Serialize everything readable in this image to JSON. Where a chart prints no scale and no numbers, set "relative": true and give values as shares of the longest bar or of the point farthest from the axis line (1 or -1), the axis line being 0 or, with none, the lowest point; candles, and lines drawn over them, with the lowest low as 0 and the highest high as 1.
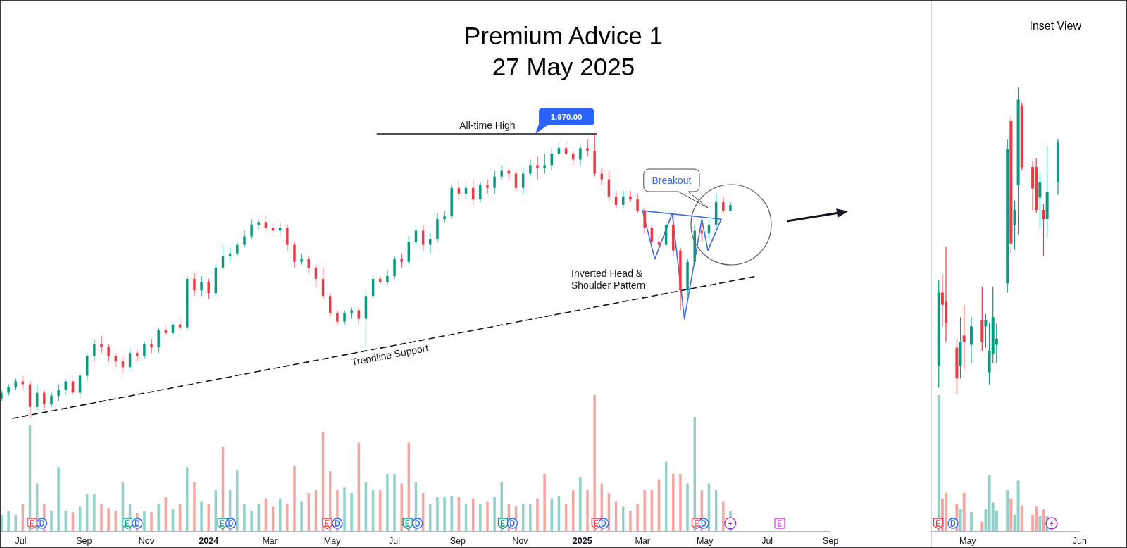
{
  "chart_data": [
    {
      "type": "candlestick",
      "title": "Premium Advice 1",
      "subtitle": "27 May 2025",
      "relative": true,
      "xlim": [
        "2023-06-11",
        "2025-09-01"
      ],
      "tick_labels": false,
      "series": [
        {
          "type": "candlestick",
          "x": [
            "2023-06-12",
            "2023-06-19",
            "2023-06-26",
            "2023-07-03",
            "2023-07-10",
            "2023-07-17",
            "2023-07-24",
            "2023-07-31",
            "2023-08-07",
            "2023-08-14",
            "2023-08-21",
            "2023-08-28",
            "2023-09-04",
            "2023-09-11",
            "2023-09-18",
            "2023-09-25",
            "2023-10-02",
            "2023-10-09",
            "2023-10-16",
            "2023-10-23",
            "2023-10-30",
            "2023-11-06",
            "2023-11-13",
            "2023-11-20",
            "2023-11-27",
            "2023-12-04",
            "2023-12-11",
            "2023-12-18",
            "2023-12-25",
            "2024-01-01",
            "2024-01-08",
            "2024-01-15",
            "2024-01-22",
            "2024-01-29",
            "2024-02-05",
            "2024-02-12",
            "2024-02-19",
            "2024-02-26",
            "2024-03-04",
            "2024-03-11",
            "2024-03-18",
            "2024-03-25",
            "2024-04-01",
            "2024-04-08",
            "2024-04-15",
            "2024-04-22",
            "2024-04-29",
            "2024-05-06",
            "2024-05-13",
            "2024-05-20",
            "2024-05-27",
            "2024-06-03",
            "2024-06-10",
            "2024-06-17",
            "2024-06-24",
            "2024-07-01",
            "2024-07-08",
            "2024-07-15",
            "2024-07-22",
            "2024-07-29",
            "2024-08-05",
            "2024-08-12",
            "2024-08-19",
            "2024-08-26",
            "2024-09-02",
            "2024-09-09",
            "2024-09-16",
            "2024-09-23",
            "2024-09-30",
            "2024-10-07",
            "2024-10-14",
            "2024-10-21",
            "2024-10-28",
            "2024-11-04",
            "2024-11-11",
            "2024-11-18",
            "2024-11-25",
            "2024-12-02",
            "2024-12-09",
            "2024-12-16",
            "2024-12-23",
            "2024-12-30",
            "2025-01-06",
            "2025-01-13",
            "2025-01-20",
            "2025-01-27",
            "2025-02-03",
            "2025-02-10",
            "2025-02-17",
            "2025-02-24",
            "2025-03-03",
            "2025-03-10",
            "2025-03-17",
            "2025-03-24",
            "2025-03-31",
            "2025-04-07",
            "2025-04-14",
            "2025-04-21",
            "2025-04-28",
            "2025-05-05",
            "2025-05-12",
            "2025-05-19",
            "2025-05-26"
          ],
          "ohlc": [
            [
              0.07,
              0.1,
              0.06,
              0.09
            ],
            [
              0.09,
              0.12,
              0.08,
              0.11
            ],
            [
              0.11,
              0.14,
              0.1,
              0.13
            ],
            [
              0.13,
              0.15,
              0.1,
              0.12
            ],
            [
              0.12,
              0.13,
              0,
              0.04
            ],
            [
              0.04,
              0.12,
              0.03,
              0.09
            ],
            [
              0.09,
              0.1,
              0.03,
              0.05
            ],
            [
              0.05,
              0.09,
              0.04,
              0.08
            ],
            [
              0.08,
              0.12,
              0.06,
              0.1
            ],
            [
              0.1,
              0.14,
              0.08,
              0.13
            ],
            [
              0.13,
              0.15,
              0.08,
              0.09
            ],
            [
              0.09,
              0.16,
              0.07,
              0.15
            ],
            [
              0.15,
              0.23,
              0.13,
              0.22
            ],
            [
              0.22,
              0.28,
              0.2,
              0.26
            ],
            [
              0.26,
              0.29,
              0.23,
              0.25
            ],
            [
              0.25,
              0.26,
              0.2,
              0.22
            ],
            [
              0.22,
              0.23,
              0.18,
              0.2
            ],
            [
              0.2,
              0.22,
              0.16,
              0.18
            ],
            [
              0.18,
              0.25,
              0.17,
              0.23
            ],
            [
              0.23,
              0.24,
              0.2,
              0.22
            ],
            [
              0.22,
              0.27,
              0.21,
              0.26
            ],
            [
              0.26,
              0.28,
              0.23,
              0.25
            ],
            [
              0.25,
              0.32,
              0.23,
              0.31
            ],
            [
              0.31,
              0.33,
              0.29,
              0.3
            ],
            [
              0.3,
              0.34,
              0.29,
              0.33
            ],
            [
              0.33,
              0.35,
              0.31,
              0.32
            ],
            [
              0.32,
              0.5,
              0.31,
              0.49
            ],
            [
              0.49,
              0.51,
              0.43,
              0.45
            ],
            [
              0.45,
              0.5,
              0.43,
              0.48
            ],
            [
              0.48,
              0.49,
              0.42,
              0.44
            ],
            [
              0.44,
              0.54,
              0.43,
              0.53
            ],
            [
              0.53,
              0.61,
              0.52,
              0.57
            ],
            [
              0.57,
              0.6,
              0.55,
              0.58
            ],
            [
              0.58,
              0.62,
              0.57,
              0.61
            ],
            [
              0.61,
              0.66,
              0.6,
              0.64
            ],
            [
              0.64,
              0.7,
              0.63,
              0.68
            ],
            [
              0.68,
              0.7,
              0.66,
              0.69
            ],
            [
              0.69,
              0.71,
              0.65,
              0.67
            ],
            [
              0.67,
              0.69,
              0.64,
              0.66
            ],
            [
              0.66,
              0.69,
              0.65,
              0.67
            ],
            [
              0.67,
              0.68,
              0.59,
              0.61
            ],
            [
              0.61,
              0.62,
              0.53,
              0.55
            ],
            [
              0.55,
              0.58,
              0.54,
              0.56
            ],
            [
              0.56,
              0.57,
              0.51,
              0.53
            ],
            [
              0.53,
              0.54,
              0.46,
              0.49
            ],
            [
              0.49,
              0.53,
              0.42,
              0.43
            ],
            [
              0.43,
              0.44,
              0.36,
              0.37
            ],
            [
              0.37,
              0.38,
              0.33,
              0.34
            ],
            [
              0.34,
              0.38,
              0.33,
              0.37
            ],
            [
              0.37,
              0.39,
              0.35,
              0.38
            ],
            [
              0.38,
              0.39,
              0.33,
              0.35
            ],
            [
              0.35,
              0.45,
              0.25,
              0.43
            ],
            [
              0.43,
              0.5,
              0.42,
              0.49
            ],
            [
              0.49,
              0.5,
              0.47,
              0.48
            ],
            [
              0.48,
              0.52,
              0.47,
              0.5
            ],
            [
              0.5,
              0.57,
              0.49,
              0.56
            ],
            [
              0.56,
              0.58,
              0.53,
              0.55
            ],
            [
              0.55,
              0.64,
              0.54,
              0.62
            ],
            [
              0.62,
              0.67,
              0.61,
              0.66
            ],
            [
              0.66,
              0.68,
              0.59,
              0.61
            ],
            [
              0.61,
              0.65,
              0.58,
              0.63
            ],
            [
              0.63,
              0.72,
              0.62,
              0.7
            ],
            [
              0.7,
              0.73,
              0.69,
              0.71
            ],
            [
              0.71,
              0.82,
              0.7,
              0.81
            ],
            [
              0.81,
              0.84,
              0.77,
              0.79
            ],
            [
              0.79,
              0.83,
              0.77,
              0.81
            ],
            [
              0.81,
              0.84,
              0.75,
              0.77
            ],
            [
              0.77,
              0.83,
              0.76,
              0.82
            ],
            [
              0.82,
              0.84,
              0.79,
              0.81
            ],
            [
              0.81,
              0.87,
              0.79,
              0.85
            ],
            [
              0.85,
              0.89,
              0.84,
              0.87
            ],
            [
              0.87,
              0.88,
              0.84,
              0.86
            ],
            [
              0.86,
              0.87,
              0.8,
              0.81
            ],
            [
              0.81,
              0.88,
              0.79,
              0.86
            ],
            [
              0.86,
              0.91,
              0.85,
              0.89
            ],
            [
              0.89,
              0.92,
              0.84,
              0.88
            ],
            [
              0.88,
              0.93,
              0.86,
              0.89
            ],
            [
              0.89,
              0.95,
              0.87,
              0.93
            ],
            [
              0.93,
              0.97,
              0.92,
              0.95
            ],
            [
              0.95,
              0.97,
              0.92,
              0.93
            ],
            [
              0.93,
              0.94,
              0.89,
              0.91
            ],
            [
              0.91,
              0.96,
              0.89,
              0.95
            ],
            [
              0.95,
              0.98,
              0.92,
              0.94
            ],
            [
              0.94,
              1,
              0.85,
              0.86
            ],
            [
              0.86,
              0.88,
              0.82,
              0.84
            ],
            [
              0.84,
              0.87,
              0.77,
              0.78
            ],
            [
              0.78,
              0.8,
              0.74,
              0.75
            ],
            [
              0.75,
              0.8,
              0.74,
              0.78
            ],
            [
              0.78,
              0.8,
              0.76,
              0.77
            ],
            [
              0.77,
              0.79,
              0.72,
              0.73
            ],
            [
              0.73,
              0.74,
              0.65,
              0.67
            ],
            [
              0.67,
              0.68,
              0.6,
              0.62
            ],
            [
              0.62,
              0.64,
              0.59,
              0.61
            ],
            [
              0.61,
              0.69,
              0.6,
              0.68
            ],
            [
              0.68,
              0.72,
              0.57,
              0.59
            ],
            [
              0.59,
              0.6,
              0.38,
              0.45
            ],
            [
              0.45,
              0.56,
              0.43,
              0.55
            ],
            [
              0.55,
              0.68,
              0.54,
              0.66
            ],
            [
              0.66,
              0.68,
              0.62,
              0.65
            ],
            [
              0.65,
              0.7,
              0.63,
              0.68
            ],
            [
              0.68,
              0.79,
              0.67,
              0.76
            ],
            [
              0.76,
              0.78,
              0.72,
              0.73
            ],
            [
              0.73,
              0.76,
              0.73,
              0.75
            ]
          ],
          "colors": [
            "#089981",
            "#089981",
            "#089981",
            "#f23645",
            "#f23645",
            "#089981",
            "#f23645",
            "#089981",
            "#089981",
            "#089981",
            "#f23645",
            "#089981",
            "#089981",
            "#089981",
            "#f23645",
            "#f23645",
            "#f23645",
            "#f23645",
            "#089981",
            "#f23645",
            "#089981",
            "#f23645",
            "#089981",
            "#f23645",
            "#089981",
            "#f23645",
            "#089981",
            "#f23645",
            "#089981",
            "#f23645",
            "#089981",
            "#089981",
            "#089981",
            "#089981",
            "#089981",
            "#089981",
            "#089981",
            "#f23645",
            "#f23645",
            "#089981",
            "#f23645",
            "#f23645",
            "#089981",
            "#f23645",
            "#f23645",
            "#f23645",
            "#f23645",
            "#f23645",
            "#089981",
            "#089981",
            "#f23645",
            "#089981",
            "#089981",
            "#f23645",
            "#089981",
            "#089981",
            "#f23645",
            "#089981",
            "#089981",
            "#f23645",
            "#089981",
            "#089981",
            "#089981",
            "#089981",
            "#f23645",
            "#089981",
            "#f23645",
            "#089981",
            "#f23645",
            "#089981",
            "#089981",
            "#f23645",
            "#f23645",
            "#089981",
            "#089981",
            "#f23645",
            "#089981",
            "#089981",
            "#089981",
            "#f23645",
            "#f23645",
            "#089981",
            "#f23645",
            "#f23645",
            "#f23645",
            "#f23645",
            "#f23645",
            "#089981",
            "#f23645",
            "#f23645",
            "#f23645",
            "#f23645",
            "#f23645",
            "#089981",
            "#f23645",
            "#f23645",
            "#089981",
            "#089981",
            "#f23645",
            "#089981",
            "#089981",
            "#f23645",
            "#089981"
          ]
        },
        {
          "type": "line",
          "x": [
            "2024-06-14",
            "2025-01-15"
          ],
          "values": [
            1,
            1
          ],
          "color": "#131722"
        },
        {
          "type": "line",
          "x": [
            "2023-06-23",
            "2025-06-21"
          ],
          "values": [
            0,
            0.5
          ],
          "color": "#131722",
          "line_style": "dashed"
        },
        {
          "type": "line",
          "x": [
            "2025-03-01",
            "2025-03-13",
            "2025-03-30",
            "2025-04-11",
            "2025-04-28",
            "2025-05-04",
            "2025-05-17"
          ],
          "values": [
            0.73,
            0.56,
            0.72,
            0.35,
            0.7,
            0.59,
            0.7
          ],
          "color": "#3b6fe3"
        },
        {
          "type": "line",
          "x": [
            "2025-03-01",
            "2025-05-17"
          ],
          "values": [
            0.73,
            0.7
          ],
          "color": "#3b6fe3"
        }
      ],
      "annotations": [
        {
          "text": "All-time High",
          "x": "2024-09-30",
          "y": 1
        },
        {
          "text": "1,970.00",
          "x": "2024-11-16",
          "y": 1
        },
        "Breakout",
        "Inverted Head &\nShoulder Pattern",
        {
          "text": "Trendline Support",
          "x": "2024-06-25",
          "y": 0.25
        }
      ]
    },
    {
      "type": "bar",
      "relative": true,
      "x": [
        "2023-06-12",
        "2023-06-19",
        "2023-06-26",
        "2023-07-03",
        "2023-07-10",
        "2023-07-17",
        "2023-07-24",
        "2023-07-31",
        "2023-08-07",
        "2023-08-14",
        "2023-08-21",
        "2023-08-28",
        "2023-09-04",
        "2023-09-11",
        "2023-09-18",
        "2023-09-25",
        "2023-10-02",
        "2023-10-09",
        "2023-10-16",
        "2023-10-23",
        "2023-10-30",
        "2023-11-06",
        "2023-11-13",
        "2023-11-20",
        "2023-11-27",
        "2023-12-04",
        "2023-12-11",
        "2023-12-18",
        "2023-12-25",
        "2024-01-01",
        "2024-01-08",
        "2024-01-15",
        "2024-01-22",
        "2024-01-29",
        "2024-02-05",
        "2024-02-12",
        "2024-02-19",
        "2024-02-26",
        "2024-03-04",
        "2024-03-11",
        "2024-03-18",
        "2024-03-25",
        "2024-04-01",
        "2024-04-08",
        "2024-04-15",
        "2024-04-22",
        "2024-04-29",
        "2024-05-06",
        "2024-05-13",
        "2024-05-20",
        "2024-05-27",
        "2024-06-03",
        "2024-06-10",
        "2024-06-17",
        "2024-06-24",
        "2024-07-01",
        "2024-07-08",
        "2024-07-15",
        "2024-07-22",
        "2024-07-29",
        "2024-08-05",
        "2024-08-12",
        "2024-08-19",
        "2024-08-26",
        "2024-09-02",
        "2024-09-09",
        "2024-09-16",
        "2024-09-23",
        "2024-09-30",
        "2024-10-07",
        "2024-10-14",
        "2024-10-21",
        "2024-10-28",
        "2024-11-04",
        "2024-11-11",
        "2024-11-18",
        "2024-11-25",
        "2024-12-02",
        "2024-12-09",
        "2024-12-16",
        "2024-12-23",
        "2024-12-30",
        "2025-01-06",
        "2025-01-13",
        "2025-01-20",
        "2025-01-27",
        "2025-02-03",
        "2025-02-10",
        "2025-02-17",
        "2025-02-24",
        "2025-03-03",
        "2025-03-10",
        "2025-03-17",
        "2025-03-24",
        "2025-03-31",
        "2025-04-07",
        "2025-04-14",
        "2025-04-21",
        "2025-04-28",
        "2025-05-05",
        "2025-05-12",
        "2025-05-19",
        "2025-05-26"
      ],
      "values": [
        0.12,
        0.15,
        0.12,
        0.2,
        0.78,
        0.35,
        0.2,
        0.15,
        0.47,
        0.15,
        0.14,
        0.18,
        0.27,
        0.27,
        0.2,
        0.17,
        0.15,
        0.36,
        0.2,
        0.13,
        0.15,
        0.14,
        0.2,
        0.25,
        0.16,
        0.2,
        0.47,
        0.36,
        0.22,
        0.2,
        0.3,
        0.62,
        0.3,
        0.45,
        0.2,
        0.15,
        0.2,
        0.24,
        0.18,
        0.24,
        0.2,
        0.48,
        0.22,
        0.28,
        0.3,
        0.73,
        0.44,
        0.3,
        0.32,
        0.28,
        0.65,
        0.36,
        0.3,
        0.3,
        0.42,
        0.42,
        0.35,
        0.65,
        0.36,
        0.28,
        0.2,
        0.25,
        0.25,
        0.26,
        0.25,
        0.2,
        0.24,
        0.2,
        0.22,
        0.25,
        0.36,
        0.2,
        0.18,
        0.2,
        0.2,
        0.24,
        0.42,
        0.24,
        0.26,
        0.2,
        0.3,
        0.4,
        0.3,
        1,
        0.35,
        0.28,
        0.22,
        0.18,
        0.15,
        0.2,
        0.3,
        0.3,
        0.38,
        0.51,
        0.42,
        0.42,
        0.35,
        0.84,
        0.3,
        0.35,
        0.3,
        0.22,
        0.15
      ],
      "colors": [
        "#8fd1c8",
        "#8fd1c8",
        "#8fd1c8",
        "#f5a5a2",
        "#8fd1c8",
        "#8fd1c8",
        "#f5a5a2",
        "#8fd1c8",
        "#8fd1c8",
        "#8fd1c8",
        "#f5a5a2",
        "#8fd1c8",
        "#8fd1c8",
        "#8fd1c8",
        "#f5a5a2",
        "#f5a5a2",
        "#f5a5a2",
        "#8fd1c8",
        "#8fd1c8",
        "#f5a5a2",
        "#8fd1c8",
        "#f5a5a2",
        "#8fd1c8",
        "#f5a5a2",
        "#8fd1c8",
        "#f5a5a2",
        "#8fd1c8",
        "#f5a5a2",
        "#8fd1c8",
        "#f5a5a2",
        "#8fd1c8",
        "#f5a5a2",
        "#8fd1c8",
        "#8fd1c8",
        "#8fd1c8",
        "#8fd1c8",
        "#8fd1c8",
        "#f5a5a2",
        "#f5a5a2",
        "#8fd1c8",
        "#f5a5a2",
        "#f5a5a2",
        "#8fd1c8",
        "#f5a5a2",
        "#f5a5a2",
        "#f5a5a2",
        "#f5a5a2",
        "#f5a5a2",
        "#8fd1c8",
        "#8fd1c8",
        "#f5a5a2",
        "#8fd1c8",
        "#8fd1c8",
        "#f5a5a2",
        "#8fd1c8",
        "#8fd1c8",
        "#f5a5a2",
        "#f5a5a2",
        "#8fd1c8",
        "#f5a5a2",
        "#8fd1c8",
        "#8fd1c8",
        "#8fd1c8",
        "#8fd1c8",
        "#f5a5a2",
        "#8fd1c8",
        "#f5a5a2",
        "#8fd1c8",
        "#f5a5a2",
        "#8fd1c8",
        "#8fd1c8",
        "#f5a5a2",
        "#f5a5a2",
        "#8fd1c8",
        "#8fd1c8",
        "#f5a5a2",
        "#f5a5a2",
        "#8fd1c8",
        "#8fd1c8",
        "#f5a5a2",
        "#f5a5a2",
        "#8fd1c8",
        "#f5a5a2",
        "#f5a5a2",
        "#f5a5a2",
        "#f5a5a2",
        "#f5a5a2",
        "#8fd1c8",
        "#f5a5a2",
        "#f5a5a2",
        "#f5a5a2",
        "#f5a5a2",
        "#f5a5a2",
        "#8fd1c8",
        "#f5a5a2",
        "#f5a5a2",
        "#8fd1c8",
        "#8fd1c8",
        "#f5a5a2",
        "#8fd1c8",
        "#8fd1c8",
        "#f5a5a2",
        "#8fd1c8"
      ],
      "xlim": [
        "2023-06-11",
        "2025-09-01"
      ],
      "xticks": [
        {
          "value": "2023-07-01",
          "label": "Jul"
        },
        {
          "value": "2023-09-01",
          "label": "Sep"
        },
        {
          "value": "2023-11-01",
          "label": "Nov"
        },
        {
          "value": "2024-01-01",
          "label": "2024"
        },
        {
          "value": "2024-03-01",
          "label": "Mar"
        },
        {
          "value": "2024-05-01",
          "label": "May"
        },
        {
          "value": "2024-07-01",
          "label": "Jul"
        },
        {
          "value": "2024-09-01",
          "label": "Sep"
        },
        {
          "value": "2024-11-01",
          "label": "Nov"
        },
        {
          "value": "2025-01-01",
          "label": "2025"
        },
        {
          "value": "2025-03-01",
          "label": "Mar"
        },
        {
          "value": "2025-05-01",
          "label": "May"
        },
        {
          "value": "2025-07-01",
          "label": "Jul"
        },
        {
          "value": "2025-09-01",
          "label": "Sep"
        }
      ]
    },
    {
      "type": "candlestick",
      "title": "Inset View",
      "relative": true,
      "x": [
        "2025-04-23",
        "2025-04-24",
        "2025-04-25",
        "2025-04-28",
        "2025-04-29",
        "2025-04-30",
        "2025-05-02",
        "2025-05-05",
        "2025-05-06",
        "2025-05-07",
        "2025-05-08",
        "2025-05-09",
        "2025-05-12",
        "2025-05-13",
        "2025-05-14",
        "2025-05-15",
        "2025-05-16",
        "2025-05-19",
        "2025-05-20",
        "2025-05-21",
        "2025-05-22",
        "2025-05-23",
        "2025-05-26"
      ],
      "ohlc": [
        [
          0.09,
          0.37,
          0.02,
          0.33
        ],
        [
          0.33,
          0.39,
          0.22,
          0.29
        ],
        [
          0.3,
          0.48,
          0.17,
          0.23
        ],
        [
          0.15,
          0.18,
          0,
          0.05
        ],
        [
          0.09,
          0.25,
          0.05,
          0.17
        ],
        [
          0.19,
          0.29,
          0.08,
          0.17
        ],
        [
          0.16,
          0.25,
          0.1,
          0.22
        ],
        [
          0.24,
          0.35,
          0.14,
          0.17
        ],
        [
          0.22,
          0.26,
          0.15,
          0.24
        ],
        [
          0.07,
          0.23,
          0.03,
          0.14
        ],
        [
          0.13,
          0.35,
          0.1,
          0.25
        ],
        [
          0.16,
          0.23,
          0.1,
          0.18
        ],
        [
          0.36,
          0.83,
          0.33,
          0.8
        ],
        [
          0.89,
          0.91,
          0.46,
          0.49
        ],
        [
          0.55,
          0.63,
          0.47,
          0.6
        ],
        [
          0.68,
          1,
          0.52,
          0.96
        ],
        [
          0.94,
          0.95,
          0.73,
          0.74
        ],
        [
          0.74,
          0.76,
          0.6,
          0.67
        ],
        [
          0.74,
          0.77,
          0.59,
          0.6
        ],
        [
          0.64,
          0.72,
          0.54,
          0.69
        ],
        [
          0.6,
          0.62,
          0.45,
          0.57
        ],
        [
          0.57,
          0.81,
          0.51,
          0.66
        ],
        [
          0.69,
          0.83,
          0.65,
          0.82
        ]
      ],
      "colors": [
        "#089981",
        "#f23645",
        "#f23645",
        "#f23645",
        "#089981",
        "#f23645",
        "#089981",
        "#f23645",
        "#089981",
        "#089981",
        "#089981",
        "#089981",
        "#089981",
        "#f23645",
        "#089981",
        "#089981",
        "#f23645",
        "#f23645",
        "#f23645",
        "#089981",
        "#f23645",
        "#089981",
        "#089981"
      ],
      "xlim": [
        "2025-04-21",
        "2025-06-01"
      ],
      "tick_labels": false
    },
    {
      "type": "bar",
      "relative": true,
      "x": [
        "2025-04-23",
        "2025-04-24",
        "2025-04-25",
        "2025-04-28",
        "2025-04-29",
        "2025-04-30",
        "2025-05-02",
        "2025-05-05",
        "2025-05-06",
        "2025-05-07",
        "2025-05-08",
        "2025-05-09",
        "2025-05-12",
        "2025-05-13",
        "2025-05-14",
        "2025-05-15",
        "2025-05-16",
        "2025-05-19",
        "2025-05-20",
        "2025-05-21",
        "2025-05-22",
        "2025-05-23"
      ],
      "values": [
        1,
        0.24,
        0.28,
        0.2,
        0.16,
        0.28,
        0.14,
        0.07,
        0.16,
        0.41,
        0.21,
        0.15,
        0.3,
        0.24,
        0.12,
        0.37,
        0.19,
        0.12,
        0.18,
        0.11,
        0.16,
        0.11
      ],
      "colors": [
        "#8fd1c8",
        "#f5a5a2",
        "#f5a5a2",
        "#f5a5a2",
        "#8fd1c8",
        "#f5a5a2",
        "#8fd1c8",
        "#f5a5a2",
        "#8fd1c8",
        "#8fd1c8",
        "#8fd1c8",
        "#8fd1c8",
        "#8fd1c8",
        "#f5a5a2",
        "#8fd1c8",
        "#8fd1c8",
        "#f5a5a2",
        "#f5a5a2",
        "#f5a5a2",
        "#8fd1c8",
        "#f5a5a2",
        "#8fd1c8"
      ],
      "xlim": [
        "2025-04-21",
        "2025-06-01"
      ],
      "xticks": [
        {
          "value": "2025-05-01",
          "label": "May"
        },
        {
          "value": "2025-06-01",
          "label": "Jun"
        }
      ]
    }
  ]
}
